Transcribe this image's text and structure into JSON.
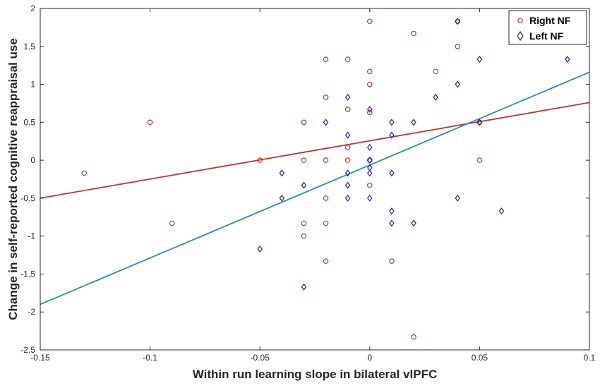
{
  "chart_data": {
    "type": "scatter",
    "xlabel": "Within run learning slope in bilateral vlPFC",
    "ylabel": "Change in self-reported cognitive reappraisal use",
    "xlim": [
      -0.15,
      0.1
    ],
    "ylim": [
      -2.5,
      2
    ],
    "xticks": [
      -0.15,
      -0.1,
      -0.05,
      0,
      0.05,
      0.1
    ],
    "xtick_labels": [
      "-0.15",
      "-0.1",
      "-0.05",
      "0",
      "0.05",
      "0.1"
    ],
    "yticks": [
      -2.5,
      -2,
      -1.5,
      -1,
      -0.5,
      0,
      0.5,
      1,
      1.5,
      2
    ],
    "ytick_labels": [
      "-2.5",
      "-2",
      "-1.5",
      "-1",
      "-0.5",
      "0",
      "0.5",
      "1",
      "1.5",
      "2"
    ],
    "grid": false,
    "legend_position": "top-right",
    "series": [
      {
        "name": "Right NF",
        "marker": "circle",
        "color": "#c0392b",
        "points": [
          [
            -0.13,
            -0.17
          ],
          [
            -0.1,
            0.5
          ],
          [
            -0.09,
            -0.83
          ],
          [
            -0.05,
            0
          ],
          [
            -0.03,
            0.5
          ],
          [
            -0.03,
            0
          ],
          [
            -0.03,
            -0.83
          ],
          [
            -0.03,
            -1
          ],
          [
            -0.02,
            1.33
          ],
          [
            -0.02,
            0.83
          ],
          [
            -0.02,
            0
          ],
          [
            -0.02,
            -0.5
          ],
          [
            -0.02,
            -0.83
          ],
          [
            -0.02,
            -1.33
          ],
          [
            -0.01,
            1.33
          ],
          [
            -0.01,
            0.67
          ],
          [
            -0.01,
            0.17
          ],
          [
            -0.01,
            0
          ],
          [
            0,
            1.83
          ],
          [
            0,
            1.17
          ],
          [
            0,
            1
          ],
          [
            0,
            0.63
          ],
          [
            0,
            0
          ],
          [
            0,
            -0.33
          ],
          [
            0.01,
            -1.33
          ],
          [
            0.02,
            1.67
          ],
          [
            0.02,
            -2.33
          ],
          [
            0.03,
            1.17
          ],
          [
            0.04,
            1.83
          ],
          [
            0.04,
            1.5
          ],
          [
            0.05,
            0.5
          ],
          [
            0.05,
            0
          ]
        ],
        "fit": {
          "x": [
            -0.15,
            0.1
          ],
          "y": [
            -0.5,
            0.76
          ],
          "color": "#b73a3a"
        }
      },
      {
        "name": "Left NF",
        "marker": "diamond",
        "color": "#1f1fa0",
        "points": [
          [
            -0.05,
            -1.17
          ],
          [
            -0.04,
            -0.17
          ],
          [
            -0.04,
            -0.5
          ],
          [
            -0.03,
            -0.33
          ],
          [
            -0.03,
            -1.67
          ],
          [
            -0.02,
            0.5
          ],
          [
            -0.01,
            0.83
          ],
          [
            -0.01,
            0.33
          ],
          [
            -0.01,
            -0.17
          ],
          [
            -0.01,
            -0.33
          ],
          [
            -0.01,
            -0.5
          ],
          [
            0,
            0.67
          ],
          [
            0,
            0.17
          ],
          [
            0,
            0
          ],
          [
            0,
            -0.1
          ],
          [
            0,
            -0.17
          ],
          [
            0,
            -0.5
          ],
          [
            0.01,
            0.5
          ],
          [
            0.01,
            0.33
          ],
          [
            0.01,
            -0.17
          ],
          [
            0.01,
            -0.67
          ],
          [
            0.01,
            -0.83
          ],
          [
            0.02,
            0.5
          ],
          [
            0.02,
            -0.83
          ],
          [
            0.03,
            0.83
          ],
          [
            0.04,
            1.83
          ],
          [
            0.04,
            1
          ],
          [
            0.04,
            -0.5
          ],
          [
            0.05,
            1.33
          ],
          [
            0.05,
            0.5
          ],
          [
            0.06,
            -0.67
          ],
          [
            0.09,
            1.33
          ]
        ],
        "fit": {
          "x": [
            -0.15,
            0.1
          ],
          "y": [
            -1.9,
            1.16
          ],
          "color": "#2a8ab0"
        }
      }
    ]
  }
}
